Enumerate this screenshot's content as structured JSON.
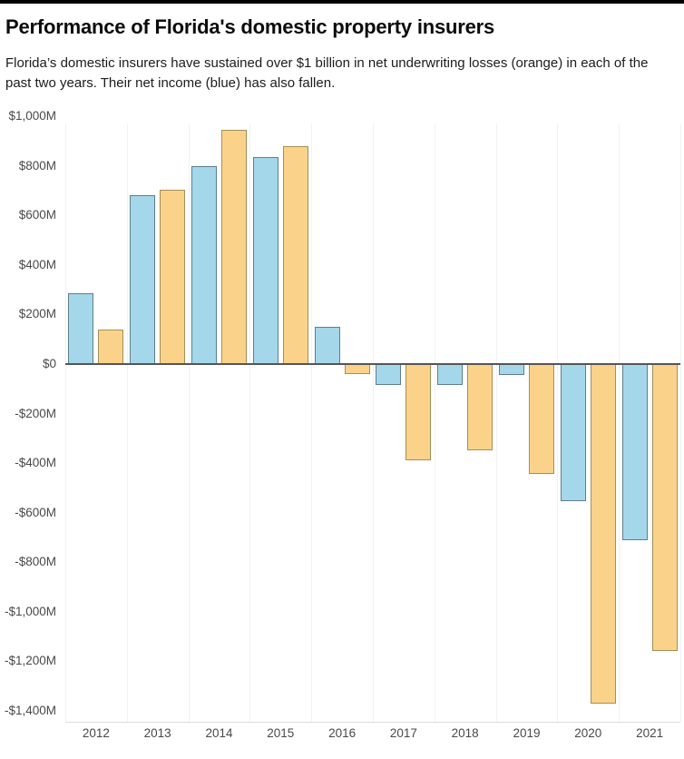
{
  "header": {
    "title": "Performance of Florida's domestic property insurers",
    "subtitle": "Florida’s domestic insurers have sustained over $1 billion in net underwriting losses (orange) in each of the past two years. Their net income (blue) has also fallen."
  },
  "colors": {
    "top_bar": "#000000",
    "net_income_fill": "#a4d7e9",
    "net_income_stroke": "#5c7f90",
    "underwriting_fill": "#fbd289",
    "underwriting_stroke": "#a39058",
    "zero_line": "#555555",
    "axis_line": "#dcdcdc",
    "gridline": "#f2f2f2"
  },
  "chart_data": {
    "type": "bar",
    "title": "Performance of Florida's domestic property insurers",
    "categories": [
      "2012",
      "2013",
      "2014",
      "2015",
      "2016",
      "2017",
      "2018",
      "2019",
      "2020",
      "2021"
    ],
    "series": [
      {
        "name": "Net income (blue)",
        "color": "#a4d7e9",
        "values": [
          285,
          680,
          800,
          835,
          150,
          -85,
          -85,
          -45,
          -555,
          -710
        ]
      },
      {
        "name": "Net underwriting losses (orange)",
        "color": "#fbd289",
        "values": [
          140,
          705,
          945,
          880,
          -40,
          -390,
          -350,
          -445,
          -1370,
          -1160
        ]
      }
    ],
    "unit": "millions of dollars",
    "ylim": [
      -1400,
      1000
    ],
    "ytick_step": 200,
    "ytick_labels": [
      "$1,000M",
      "$800M",
      "$600M",
      "$400M",
      "$200M",
      "$0",
      "-$200M",
      "-$400M",
      "-$600M",
      "-$800M",
      "-$1,000M",
      "-$1,200M",
      "-$1,400M"
    ],
    "xlabel": "",
    "ylabel": "",
    "grid": "faint vertical lines between year groups",
    "legend_position": "none (colors explained in subtitle)"
  }
}
